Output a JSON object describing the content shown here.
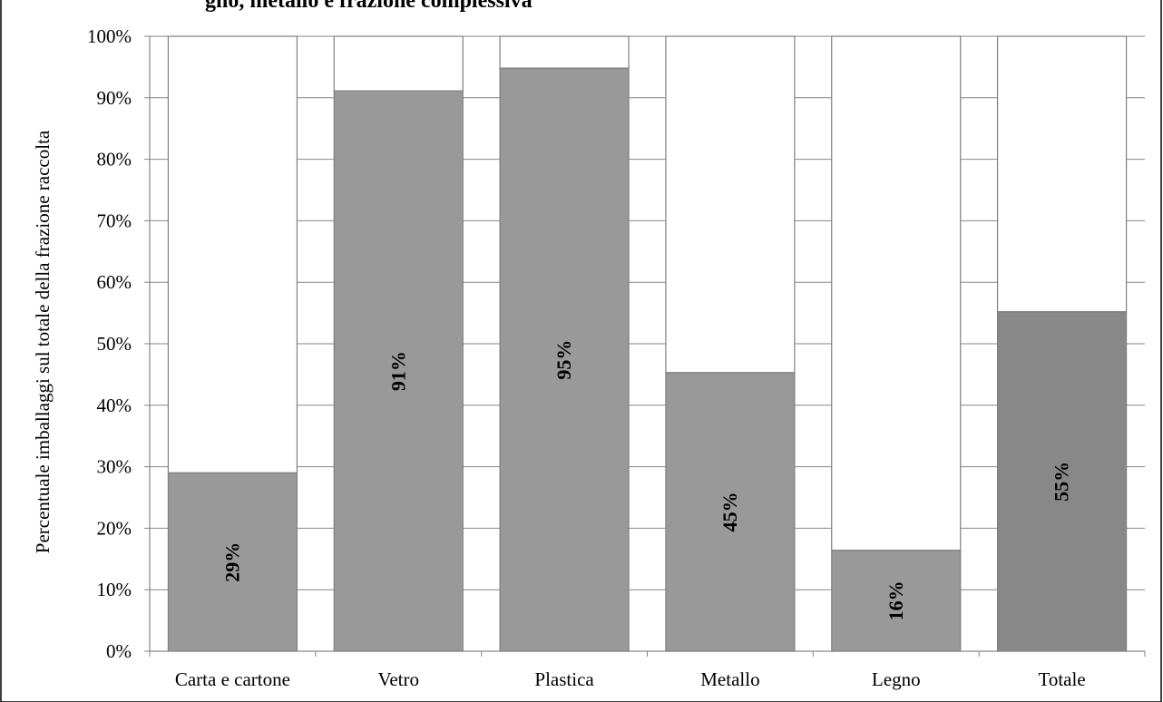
{
  "chart_data": {
    "type": "bar",
    "title": "gno, metallo e frazione complessiva",
    "xlabel": "",
    "ylabel": "Percentuale imballaggi sul totale della frazione raccolta",
    "categories": [
      "Carta e cartone",
      "Vetro",
      "Plastica",
      "Metallo",
      "Legno",
      "Totale"
    ],
    "values": [
      29.0,
      91.1,
      94.8,
      45.3,
      16.4,
      55.2
    ],
    "data_labels": [
      "29%",
      "91%",
      "95%",
      "45%",
      "16%",
      "55%"
    ],
    "ylim": [
      0,
      100
    ],
    "yticks": [
      0,
      10,
      20,
      30,
      40,
      50,
      60,
      70,
      80,
      90,
      100
    ],
    "ytick_labels": [
      "0%",
      "10%",
      "20%",
      "30%",
      "40%",
      "50%",
      "60%",
      "70%",
      "80%",
      "90%",
      "100%"
    ],
    "stacked_remainder": true,
    "grid": true,
    "legend": "none",
    "colors": {
      "bar_fill": "#999999",
      "total_fill": "#888888",
      "remainder_fill": "#ffffff",
      "bar_stroke": "#7f7f7f",
      "grid": "#868686",
      "frame": "#000000"
    }
  }
}
